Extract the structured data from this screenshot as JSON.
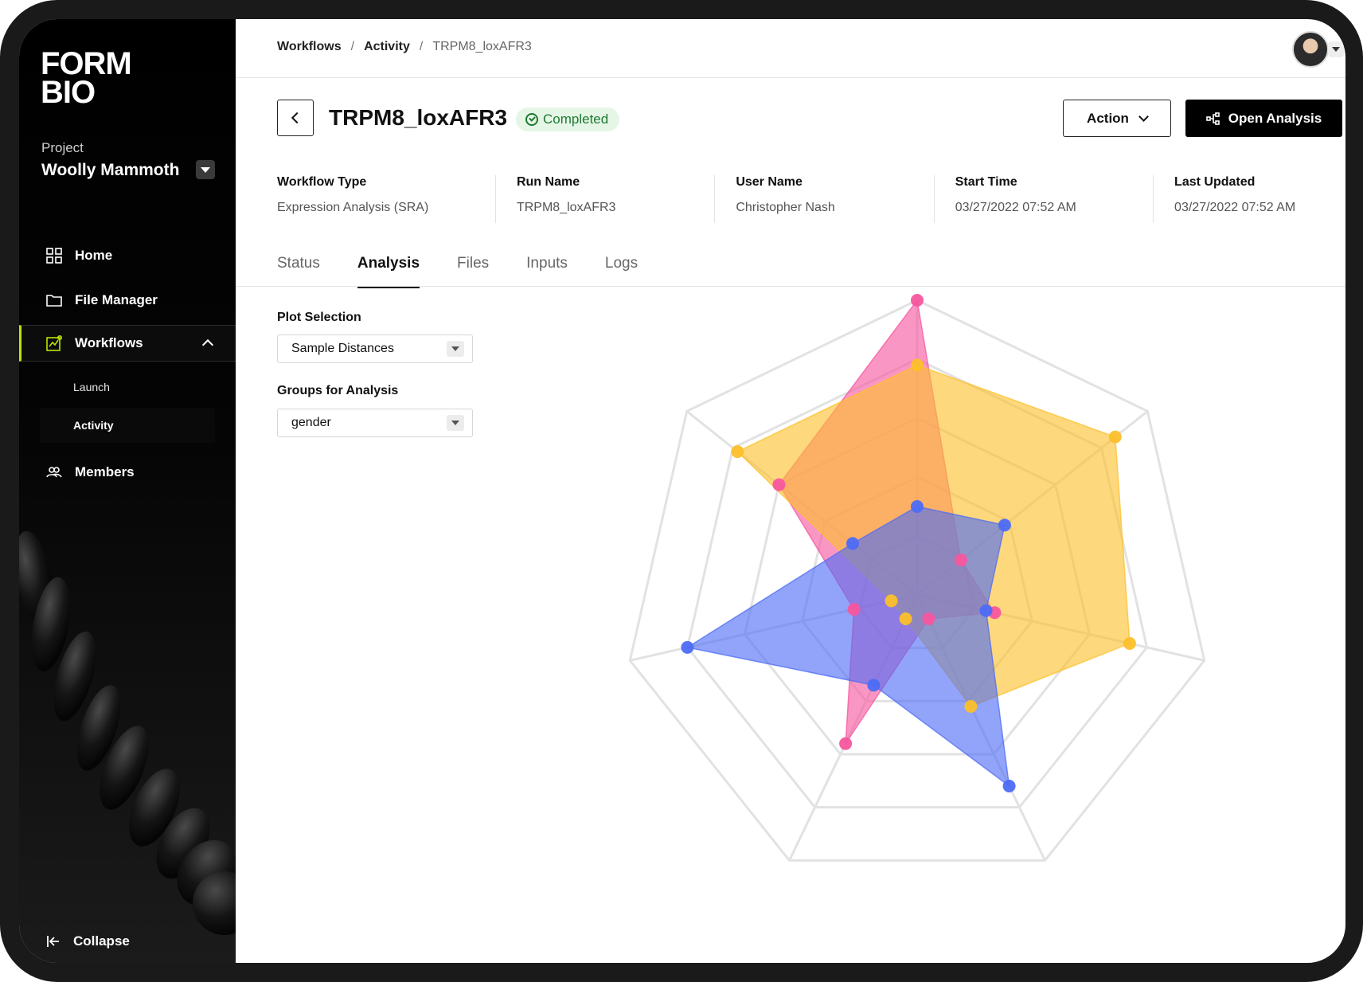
{
  "sidebar": {
    "logo_line1": "FORM",
    "logo_line2": "BIO",
    "project_label": "Project",
    "project_name": "Woolly Mammoth",
    "nav": {
      "home": "Home",
      "file_manager": "File Manager",
      "workflows": "Workflows",
      "launch": "Launch",
      "activity": "Activity",
      "members": "Members"
    },
    "collapse": "Collapse",
    "accent_color": "#b8e600"
  },
  "breadcrumb": {
    "items": [
      "Workflows",
      "Activity",
      "TRPM8_loxAFR3"
    ],
    "separator": "/"
  },
  "header": {
    "title": "TRPM8_loxAFR3",
    "status": "Completed",
    "action_label": "Action",
    "open_analysis_label": "Open Analysis"
  },
  "meta": [
    {
      "label": "Workflow Type",
      "value": "Expression Analysis (SRA)"
    },
    {
      "label": "Run Name",
      "value": "TRPM8_loxAFR3"
    },
    {
      "label": "User Name",
      "value": "Christopher Nash"
    },
    {
      "label": "Start Time",
      "value": "03/27/2022 07:52 AM"
    },
    {
      "label": "Last Updated",
      "value": "03/27/2022 07:52 AM"
    }
  ],
  "tabs": [
    "Status",
    "Analysis",
    "Files",
    "Inputs",
    "Logs"
  ],
  "active_tab": "Analysis",
  "controls": {
    "plot_selection_label": "Plot Selection",
    "plot_selection_value": "Sample Distances",
    "groups_label": "Groups for Analysis",
    "groups_value": "gender"
  },
  "chart_data": {
    "type": "radar",
    "axes": 7,
    "rings": 5,
    "max": 5,
    "grid": true,
    "series": [
      {
        "color": "#f7569e",
        "values": [
          5.0,
          0.95,
          1.35,
          0.45,
          2.8,
          1.1,
          3.0
        ]
      },
      {
        "color": "#fcc02b",
        "values": [
          3.9,
          4.3,
          3.7,
          2.1,
          0.45,
          0.45,
          3.9
        ]
      },
      {
        "color": "#4d6cf5",
        "values": [
          1.5,
          1.9,
          1.2,
          3.6,
          1.7,
          4.0,
          1.4
        ]
      }
    ]
  }
}
